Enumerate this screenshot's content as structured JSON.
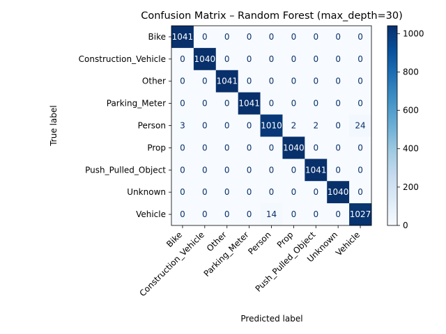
{
  "chart_data": {
    "type": "heatmap",
    "title": "Confusion Matrix – Random Forest (max_depth=30)",
    "xlabel": "Predicted label",
    "ylabel": "True label",
    "row_labels": [
      "Bike",
      "Construction_Vehicle",
      "Other",
      "Parking_Meter",
      "Person",
      "Prop",
      "Push_Pulled_Object",
      "Unknown",
      "Vehicle"
    ],
    "col_labels": [
      "Bike",
      "Construction_Vehicle",
      "Other",
      "Parking_Meter",
      "Person",
      "Prop",
      "Push_Pulled_Object",
      "Unknown",
      "Vehicle"
    ],
    "matrix": [
      [
        1041,
        0,
        0,
        0,
        0,
        0,
        0,
        0,
        0
      ],
      [
        0,
        1040,
        0,
        0,
        0,
        0,
        0,
        0,
        0
      ],
      [
        0,
        0,
        1041,
        0,
        0,
        0,
        0,
        0,
        0
      ],
      [
        0,
        0,
        0,
        1041,
        0,
        0,
        0,
        0,
        0
      ],
      [
        3,
        0,
        0,
        0,
        1010,
        2,
        2,
        0,
        24
      ],
      [
        0,
        0,
        0,
        0,
        0,
        1040,
        0,
        0,
        0
      ],
      [
        0,
        0,
        0,
        0,
        0,
        0,
        1041,
        0,
        0
      ],
      [
        0,
        0,
        0,
        0,
        0,
        0,
        0,
        1040,
        0
      ],
      [
        0,
        0,
        0,
        0,
        14,
        0,
        0,
        0,
        1027
      ]
    ],
    "colormap": "Blues",
    "vmin": 0,
    "vmax": 1041,
    "colorbar_ticks": [
      0,
      200,
      400,
      600,
      800,
      1000
    ],
    "x_tick_rotation_deg": 45,
    "grid": false
  }
}
